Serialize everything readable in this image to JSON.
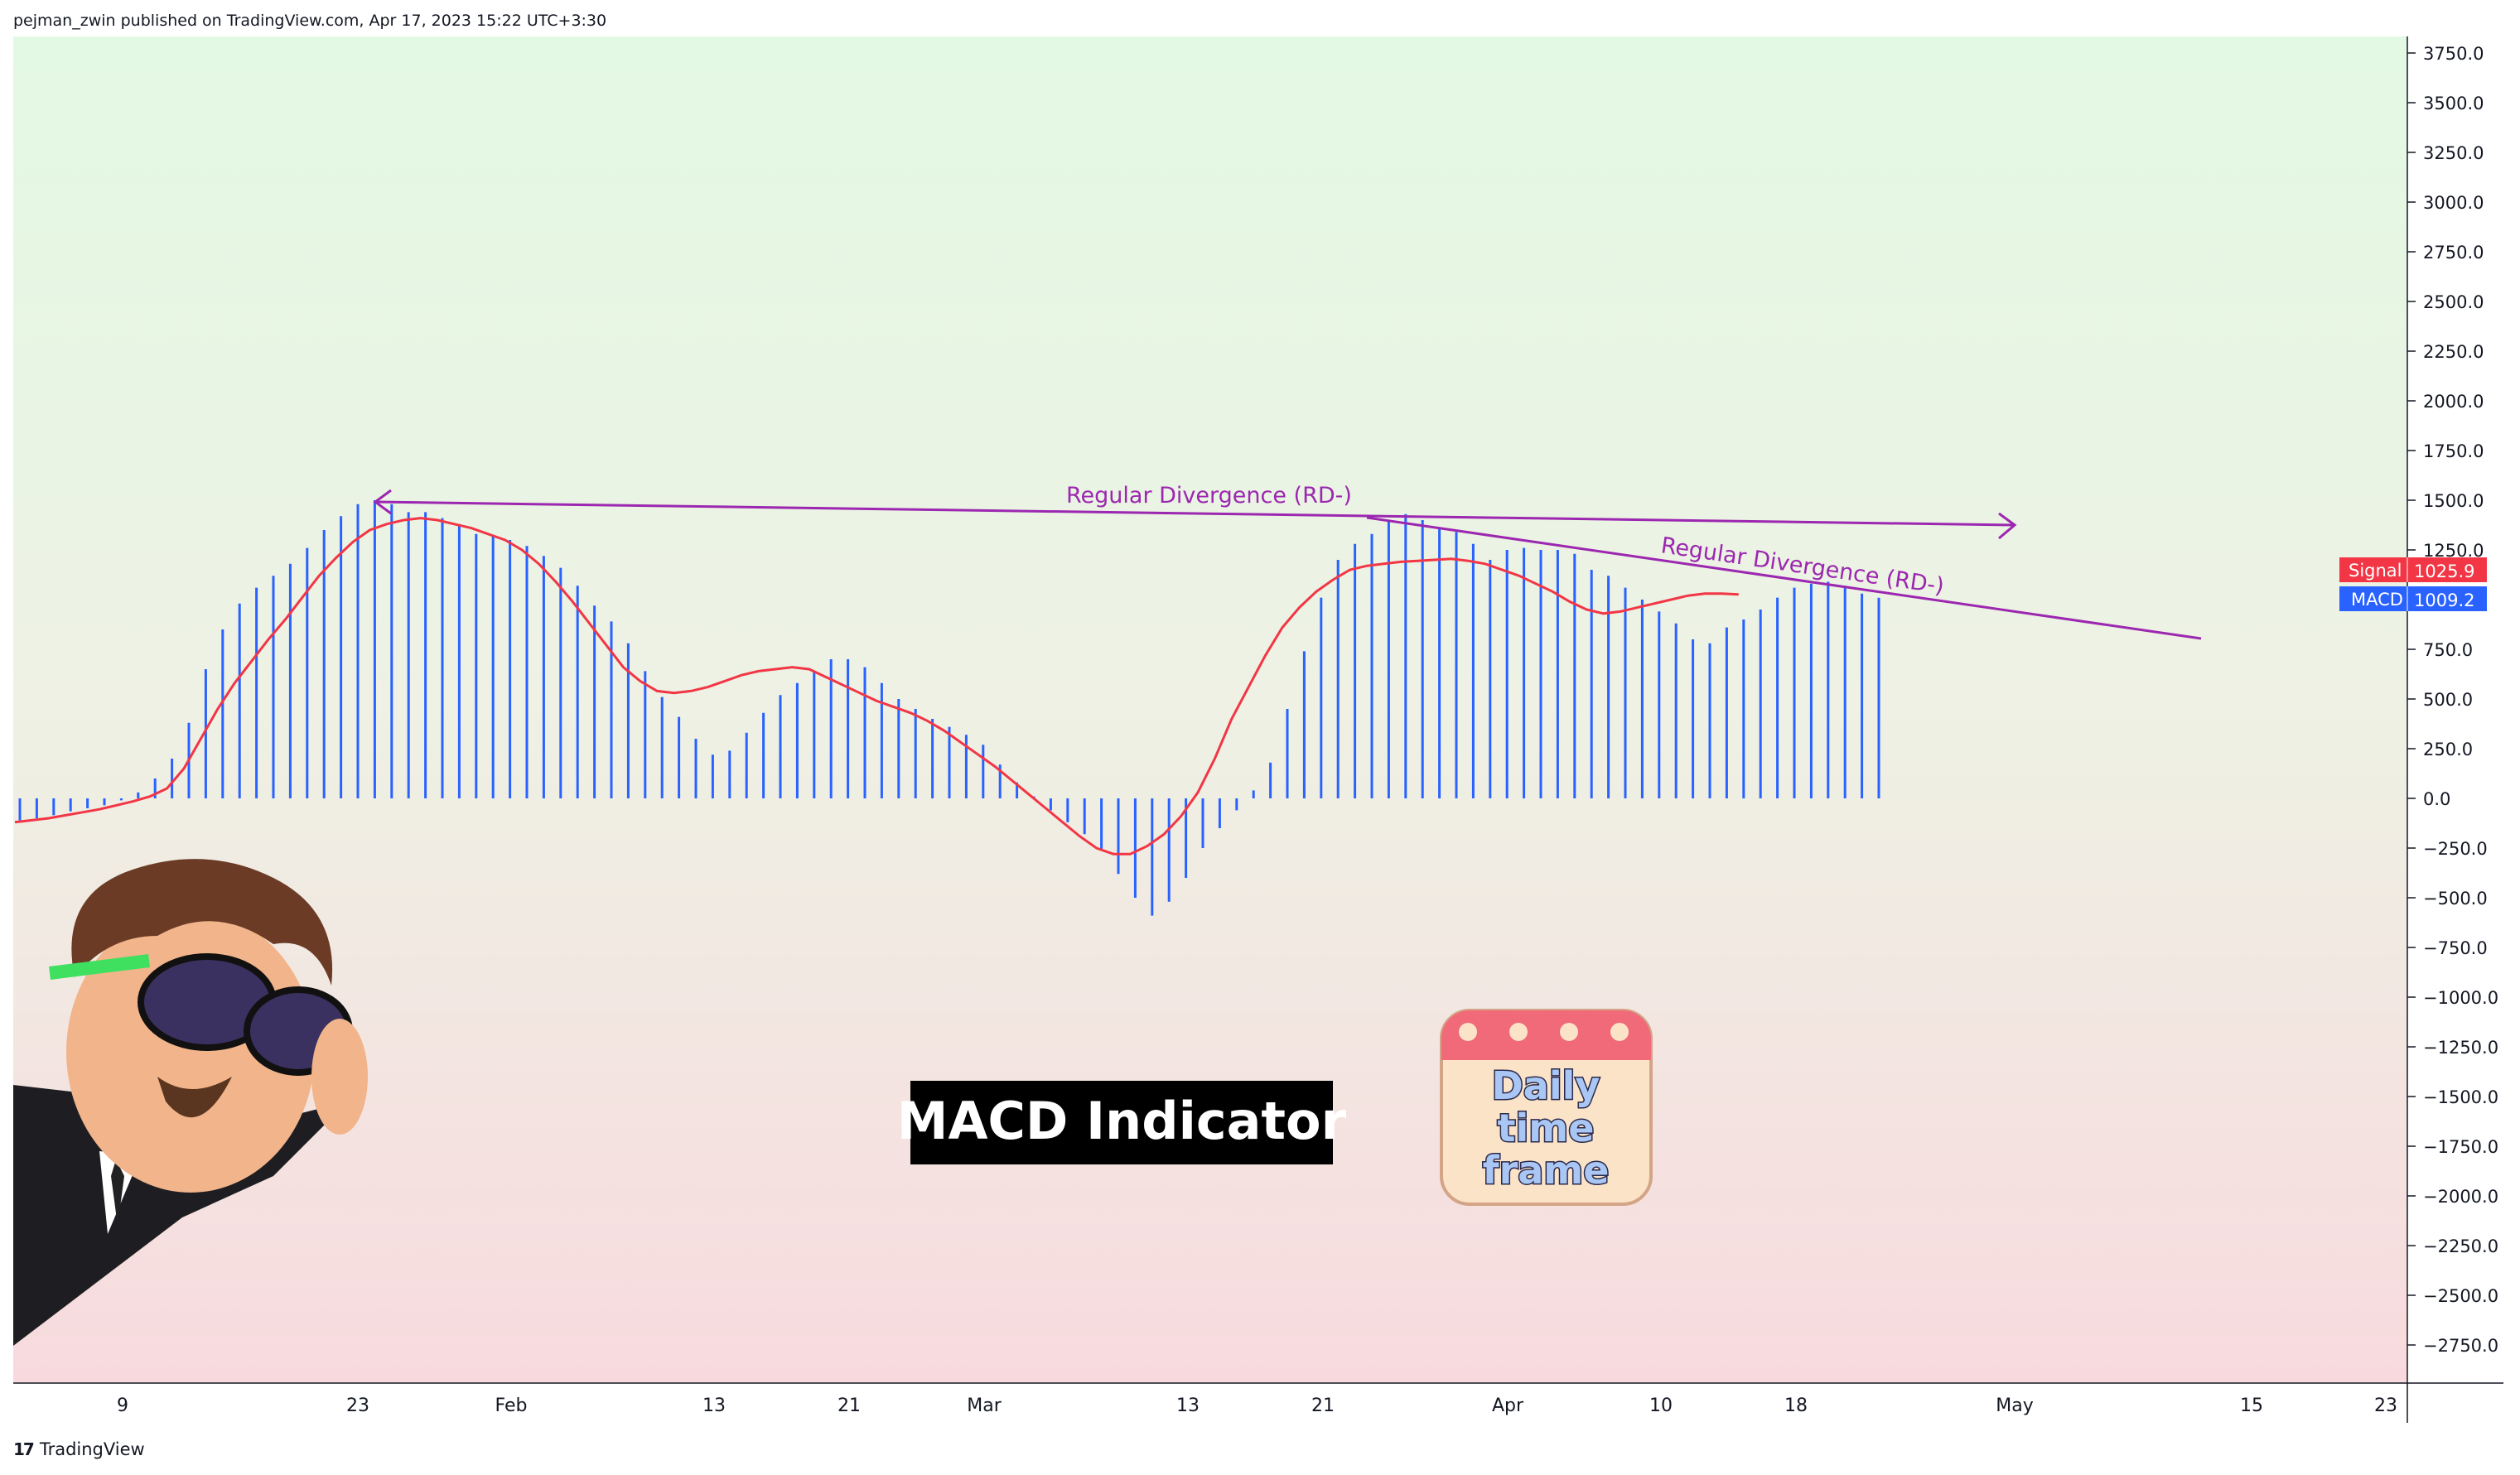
{
  "header": {
    "text": "pejman_zwin published on TradingView.com, Apr 17, 2023 15:22 UTC+3:30"
  },
  "footer": {
    "logo": "𝟭𝟳",
    "brand": "TradingView"
  },
  "colors": {
    "histogram": "#2962ff",
    "signal": "#f23645",
    "divergence": "#9c27b0"
  },
  "chart_data": {
    "type": "bar",
    "title": "",
    "y_axis": {
      "ticks": [
        "3750.0",
        "3500.0",
        "3250.0",
        "3000.0",
        "2750.0",
        "2500.0",
        "2250.0",
        "2000.0",
        "1750.0",
        "1500.0",
        "1250.0",
        "1000.0",
        "750.0",
        "500.0",
        "250.0",
        "0.0",
        "−250.0",
        "−500.0",
        "−750.0",
        "−1000.0",
        "−1250.0",
        "−1500.0",
        "−1750.0",
        "−2000.0",
        "−2250.0",
        "−2500.0",
        "−2750.0"
      ],
      "ylim": [
        -3000,
        3900
      ]
    },
    "x_axis": {
      "ticks": [
        "9",
        "23",
        "Feb",
        "13",
        "21",
        "Mar",
        "13",
        "21",
        "Apr",
        "10",
        "18",
        "May",
        "15",
        "23"
      ]
    },
    "series": [
      {
        "name": "MACD",
        "kind": "histogram",
        "last_value": "1009.2",
        "values": [
          -110,
          -100,
          -85,
          -65,
          -50,
          -35,
          -10,
          30,
          100,
          200,
          380,
          650,
          850,
          980,
          1060,
          1120,
          1180,
          1260,
          1350,
          1420,
          1480,
          1500,
          1480,
          1440,
          1440,
          1410,
          1380,
          1330,
          1320,
          1300,
          1270,
          1220,
          1160,
          1070,
          970,
          890,
          780,
          640,
          510,
          410,
          300,
          220,
          240,
          330,
          430,
          520,
          580,
          640,
          700,
          700,
          660,
          580,
          500,
          450,
          400,
          360,
          320,
          270,
          170,
          80,
          10,
          -60,
          -120,
          -180,
          -260,
          -380,
          -500,
          -590,
          -520,
          -400,
          -250,
          -150,
          -60,
          40,
          180,
          450,
          740,
          1010,
          1200,
          1280,
          1330,
          1400,
          1430,
          1400,
          1360,
          1340,
          1280,
          1200,
          1250,
          1260,
          1250,
          1250,
          1230,
          1150,
          1120,
          1060,
          1000,
          940,
          880,
          800,
          780,
          860,
          900,
          950,
          1010,
          1060,
          1080,
          1090,
          1070,
          1030,
          1009.2
        ]
      },
      {
        "name": "Signal",
        "kind": "line",
        "last_value": "1025.9",
        "values": [
          -120,
          -110,
          -100,
          -85,
          -70,
          -55,
          -35,
          -15,
          10,
          50,
          150,
          300,
          450,
          580,
          690,
          800,
          900,
          1010,
          1120,
          1210,
          1290,
          1350,
          1380,
          1400,
          1410,
          1400,
          1380,
          1360,
          1330,
          1300,
          1250,
          1180,
          1090,
          990,
          880,
          770,
          660,
          590,
          540,
          530,
          540,
          560,
          590,
          620,
          640,
          650,
          660,
          650,
          610,
          570,
          530,
          490,
          460,
          430,
          390,
          340,
          280,
          220,
          160,
          90,
          20,
          -50,
          -120,
          -190,
          -250,
          -280,
          -280,
          -240,
          -180,
          -90,
          30,
          200,
          400,
          560,
          720,
          860,
          960,
          1040,
          1100,
          1150,
          1170,
          1180,
          1190,
          1195,
          1200,
          1205,
          1195,
          1180,
          1150,
          1120,
          1080,
          1040,
          990,
          950,
          930,
          940,
          960,
          980,
          1000,
          1020,
          1030,
          1030,
          1025.9
        ]
      }
    ],
    "annotations": [
      {
        "text": "Regular Divergence (RD-)",
        "from": [
          -1,
          1500
        ],
        "to": [
          1250,
          1380
        ]
      },
      {
        "text": "Regular Divergence (RD-)",
        "from": [
          835,
          1420
        ],
        "to": [
          1375,
          800
        ]
      }
    ],
    "overlays": {
      "title_box": "MACD Indicator",
      "badge": [
        "Daily",
        "time",
        "frame"
      ]
    }
  }
}
